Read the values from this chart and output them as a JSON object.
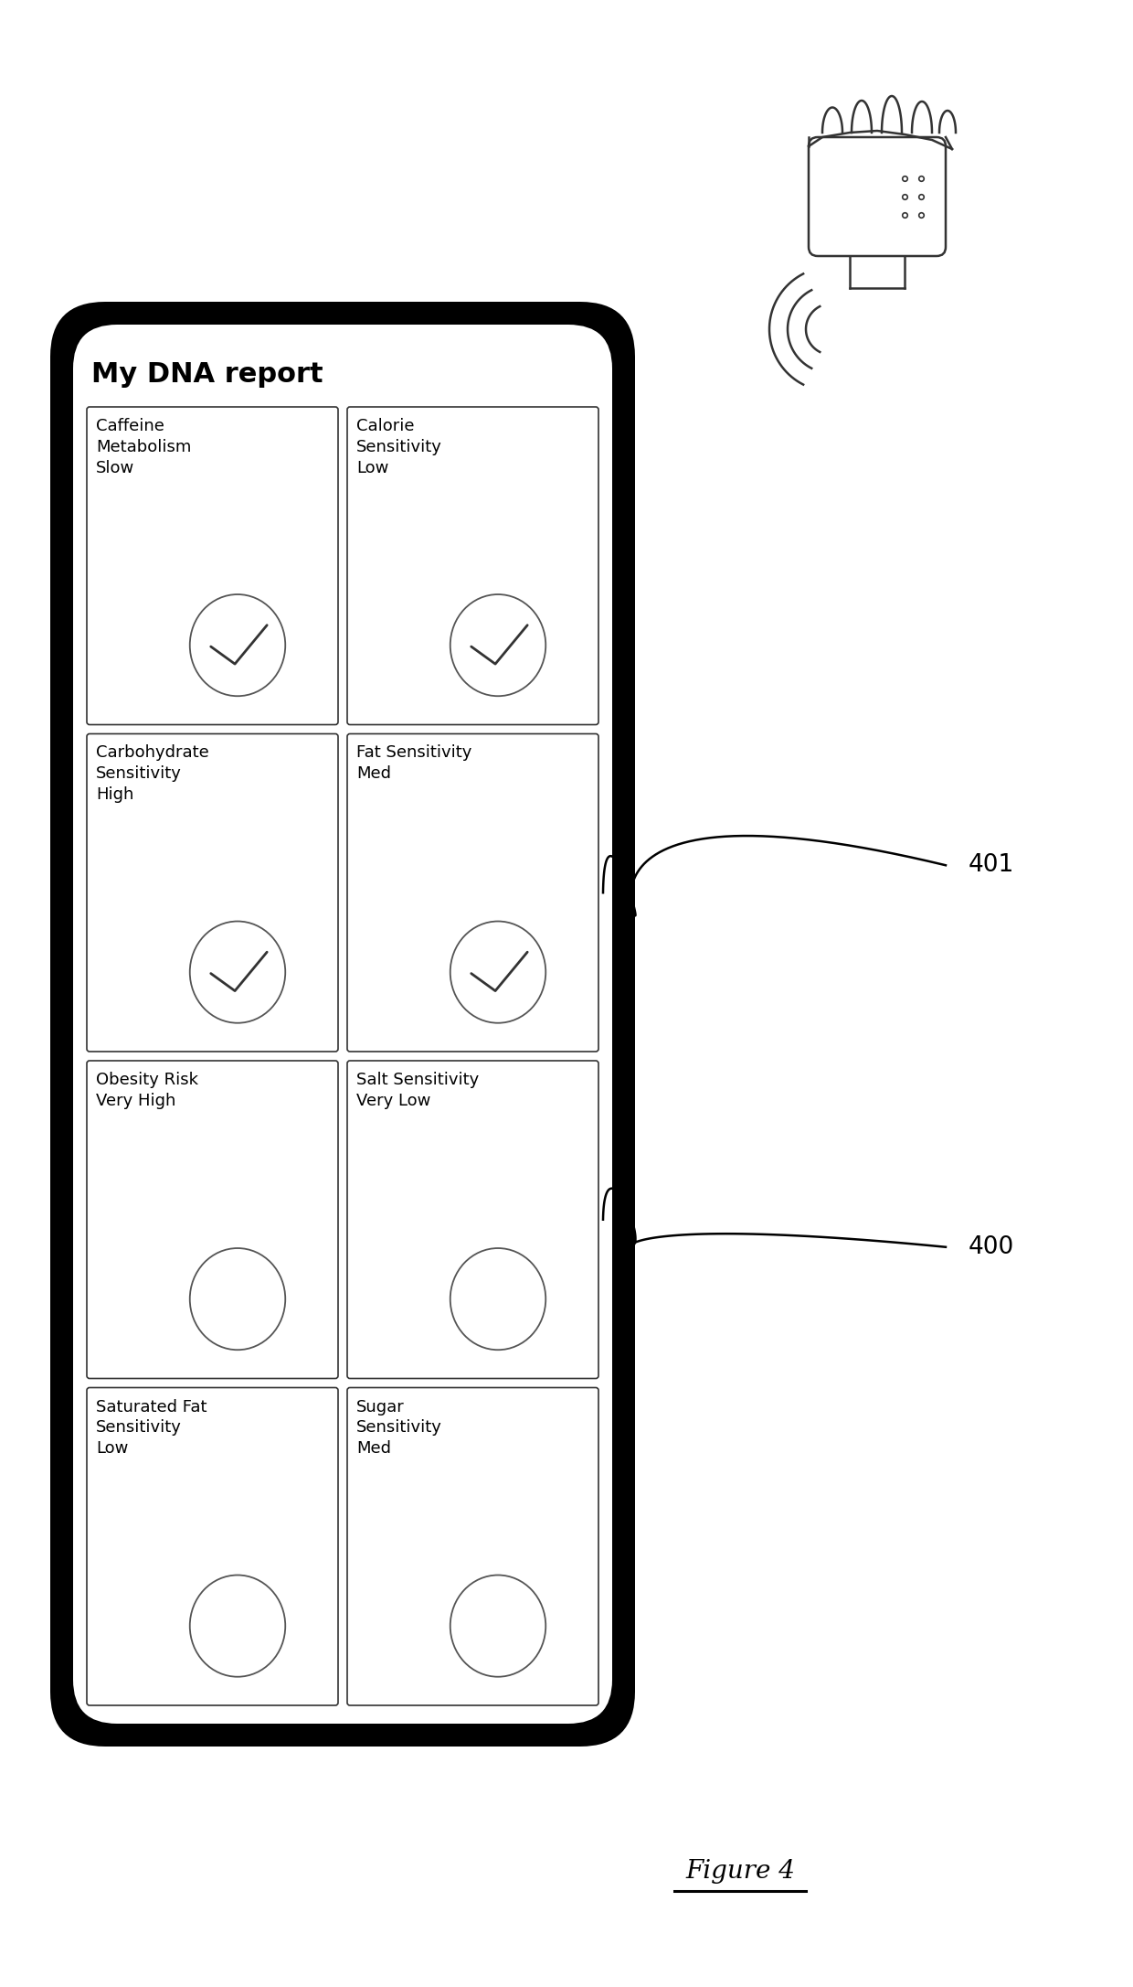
{
  "title": "My DNA report",
  "figure_label": "Figure 4",
  "cells": [
    {
      "row": 0,
      "col": 0,
      "text": "Caffeine\nMetabolism\nSlow",
      "checked": true
    },
    {
      "row": 0,
      "col": 1,
      "text": "Calorie\nSensitivity\nLow",
      "checked": true
    },
    {
      "row": 1,
      "col": 0,
      "text": "Carbohydrate\nSensitivity\nHigh",
      "checked": true
    },
    {
      "row": 1,
      "col": 1,
      "text": "Fat Sensitivity\nMed",
      "checked": true
    },
    {
      "row": 2,
      "col": 0,
      "text": "Obesity Risk\nVery High",
      "checked": false
    },
    {
      "row": 2,
      "col": 1,
      "text": "Salt Sensitivity\nVery Low",
      "checked": false
    },
    {
      "row": 3,
      "col": 0,
      "text": "Saturated Fat\nSensitivity\nLow",
      "checked": false
    },
    {
      "row": 3,
      "col": 1,
      "text": "Sugar\nSensitivity\nMed",
      "checked": false
    }
  ],
  "annotation_401": "401",
  "annotation_400": "400",
  "phone_bg": "#000000",
  "phone_screen_bg": "#ffffff",
  "cell_bg": "#ffffff",
  "cell_border": "#333333",
  "background": "#ffffff",
  "fig_width": 12.4,
  "fig_height": 21.73,
  "dpi": 100
}
